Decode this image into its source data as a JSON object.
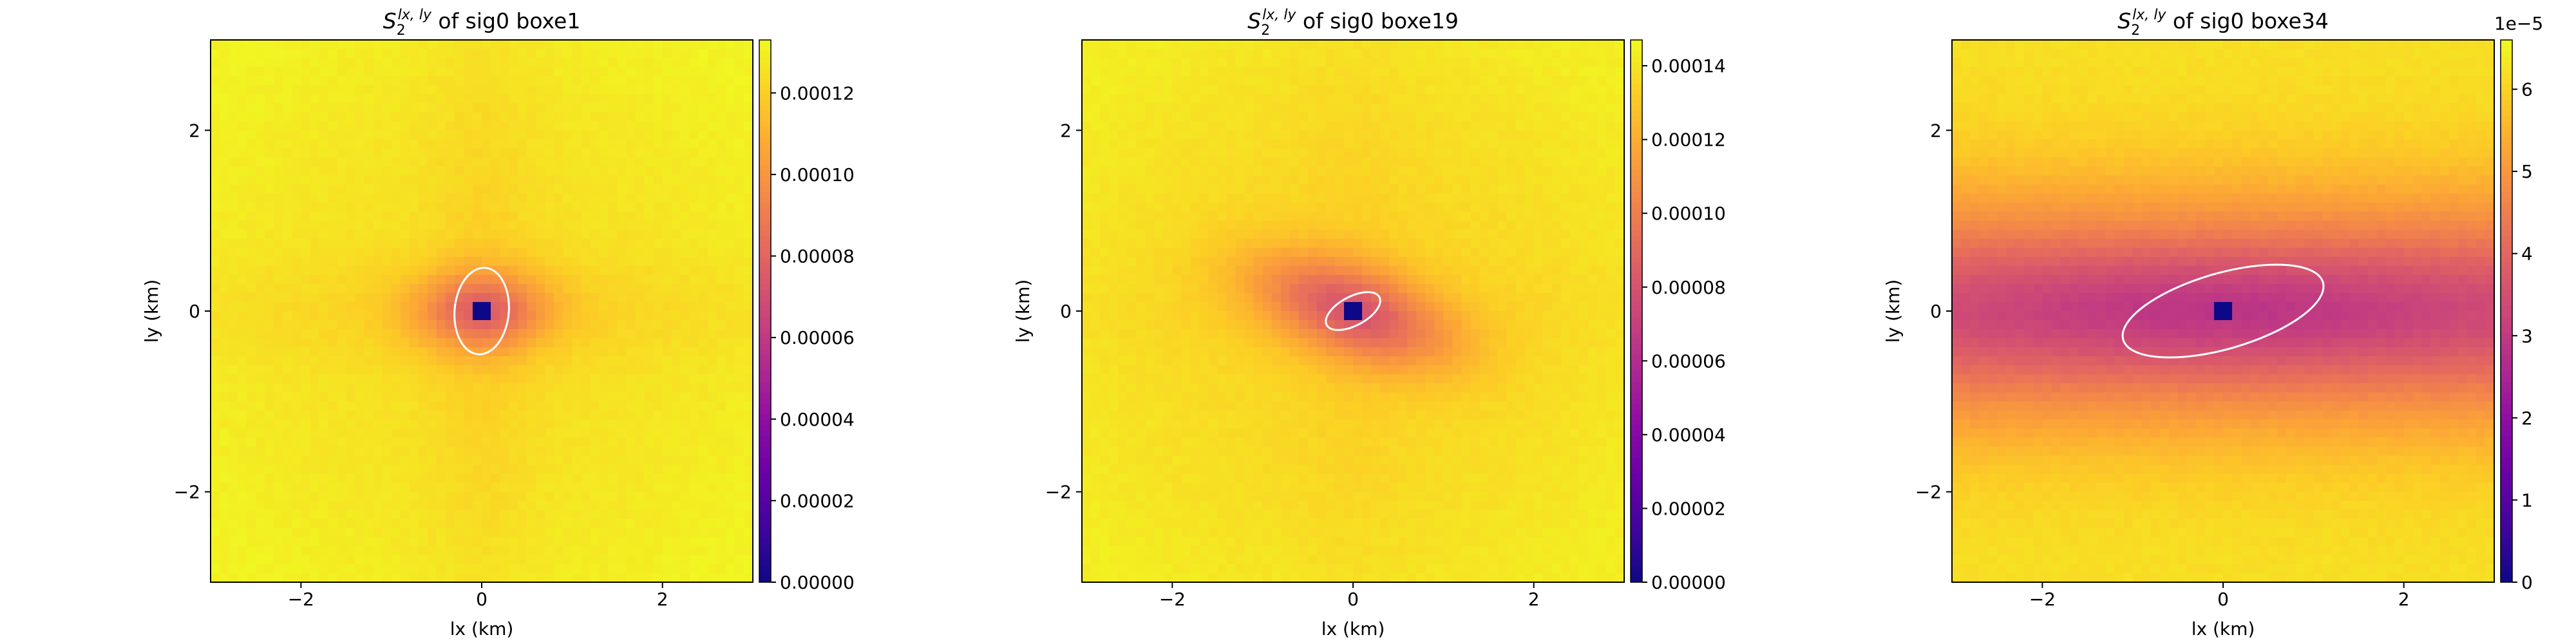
{
  "chart_data": [
    {
      "type": "heatmap",
      "title_symbol": "S",
      "title_sub": "2",
      "title_sup": "lx, ly",
      "title_suffix": "of sig0 boxe1",
      "xlabel": "lx (km)",
      "ylabel": "ly (km)",
      "xlim": [
        -3,
        3
      ],
      "ylim": [
        -3,
        3
      ],
      "xticks": [
        -2,
        0,
        2
      ],
      "yticks": [
        -2,
        0,
        2
      ],
      "colormap": "plasma",
      "colorbar": {
        "vmin": 0,
        "vmax": 0.000133,
        "ticks": [
          "0.00000",
          "0.00002",
          "0.00004",
          "0.00006",
          "0.00008",
          "0.00010",
          "0.00012"
        ],
        "tick_values": [
          0,
          2e-05,
          4e-05,
          6e-05,
          8e-05,
          0.0001,
          0.00012
        ],
        "multiplier_label": ""
      },
      "field": {
        "background": 0.000125,
        "well_depth": 4e-05,
        "sx": 0.3,
        "sy": 0.5,
        "rotation_deg": 90,
        "cross_strength": 0.45,
        "edge_rise": 6e-06
      },
      "ellipse": {
        "cx": 0,
        "cy": 0,
        "rx": 0.48,
        "ry": 0.3,
        "angle_deg": 95
      }
    },
    {
      "type": "heatmap",
      "title_symbol": "S",
      "title_sub": "2",
      "title_sup": "lx, ly",
      "title_suffix": "of sig0 boxe19",
      "xlabel": "lx (km)",
      "ylabel": "",
      "xlim": [
        -3,
        3
      ],
      "ylim": [
        -3,
        3
      ],
      "xticks": [
        -2,
        0,
        2
      ],
      "yticks": [
        -2,
        0,
        2
      ],
      "colormap": "plasma",
      "colorbar": {
        "vmin": 0,
        "vmax": 0.000147,
        "ticks": [
          "0.00000",
          "0.00002",
          "0.00004",
          "0.00006",
          "0.00008",
          "0.00010",
          "0.00012",
          "0.00014"
        ],
        "tick_values": [
          0,
          2e-05,
          4e-05,
          6e-05,
          8e-05,
          0.0001,
          0.00012,
          0.00014
        ],
        "multiplier_label": ""
      },
      "field": {
        "background": 0.000135,
        "well_depth": 5e-05,
        "sx": 0.8,
        "sy": 0.35,
        "rotation_deg": -20,
        "cross_strength": 0.2,
        "edge_rise": 8e-06
      },
      "ellipse": {
        "cx": 0,
        "cy": 0,
        "rx": 0.33,
        "ry": 0.16,
        "angle_deg": -28
      }
    },
    {
      "type": "heatmap",
      "title_symbol": "S",
      "title_sub": "2",
      "title_sup": "lx, ly",
      "title_suffix": "of sig0 boxe34",
      "xlabel": "lx (km)",
      "ylabel": "ly (km)",
      "xlim": [
        -3,
        3
      ],
      "ylim": [
        -3,
        3
      ],
      "xticks": [
        -2,
        0,
        2
      ],
      "yticks": [
        -2,
        0,
        2
      ],
      "colormap": "plasma",
      "colorbar": {
        "vmin": 0,
        "vmax": 6.6e-05,
        "ticks": [
          "0",
          "1",
          "2",
          "3",
          "4",
          "5",
          "6"
        ],
        "tick_values": [
          0,
          1e-05,
          2e-05,
          3e-05,
          4e-05,
          5e-05,
          6e-05
        ],
        "multiplier_label": "1e−5"
      },
      "field": {
        "background": 6.2e-05,
        "well_depth": 3e-05,
        "sx": 4.0,
        "sy": 0.9,
        "rotation_deg": 0,
        "cross_strength": 0,
        "edge_rise": 0
      },
      "ellipse": {
        "cx": 0,
        "cy": 0,
        "rx": 1.15,
        "ry": 0.42,
        "angle_deg": -16
      }
    }
  ],
  "colors": {
    "ellipse": "#ffffff",
    "axis": "#000000"
  }
}
